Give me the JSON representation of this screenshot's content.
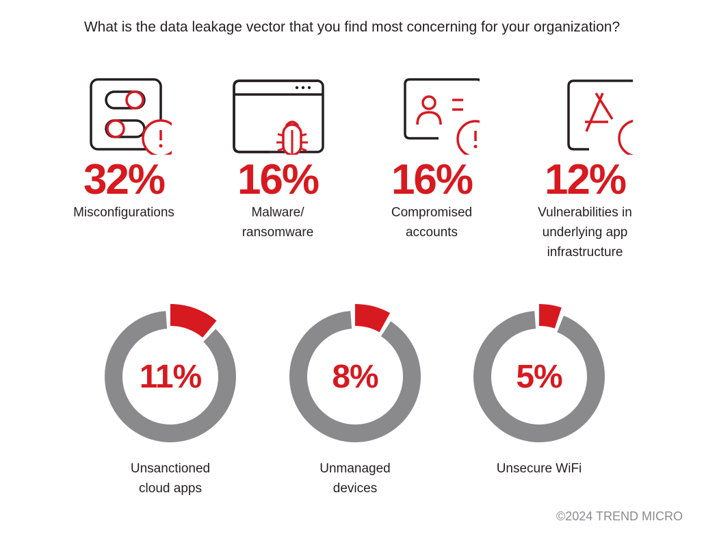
{
  "title": "What is the data leakage vector that you find most concerning for your organization?",
  "colors": {
    "accent": "#d71920",
    "ring": "#8a8a8d",
    "icon": "#231f20"
  },
  "chart_data": {
    "type": "donut",
    "categories": [
      "Misconfigurations",
      "Malware/ransomware",
      "Compromised accounts",
      "Vulnerabilities in underlying app infrastructure",
      "Unsanctioned cloud apps",
      "Unmanaged devices",
      "Unsecure WiFi"
    ],
    "values": [
      32,
      16,
      16,
      12,
      11,
      8,
      5
    ],
    "unit": "%"
  },
  "stats": [
    {
      "value": "32%",
      "label_lines": [
        "Misconfigurations"
      ],
      "icon": "toggle-alert-icon"
    },
    {
      "value": "16%",
      "label_lines": [
        "Malware/",
        "ransomware"
      ],
      "icon": "browser-bug-icon"
    },
    {
      "value": "16%",
      "label_lines": [
        "Compromised",
        "accounts"
      ],
      "icon": "id-card-alert-icon"
    },
    {
      "value": "12%",
      "label_lines": [
        "Vulnerabilities in",
        "underlying app",
        "infrastructure"
      ],
      "icon": "app-alert-icon"
    }
  ],
  "donuts": [
    {
      "value": "11%",
      "percent": 11,
      "label_lines": [
        "Unsanctioned",
        "cloud apps"
      ]
    },
    {
      "value": "8%",
      "percent": 8,
      "label_lines": [
        "Unmanaged",
        "devices"
      ]
    },
    {
      "value": "5%",
      "percent": 5,
      "label_lines": [
        "Unsecure WiFi"
      ]
    }
  ],
  "copyright": "©2024 TREND MICRO"
}
